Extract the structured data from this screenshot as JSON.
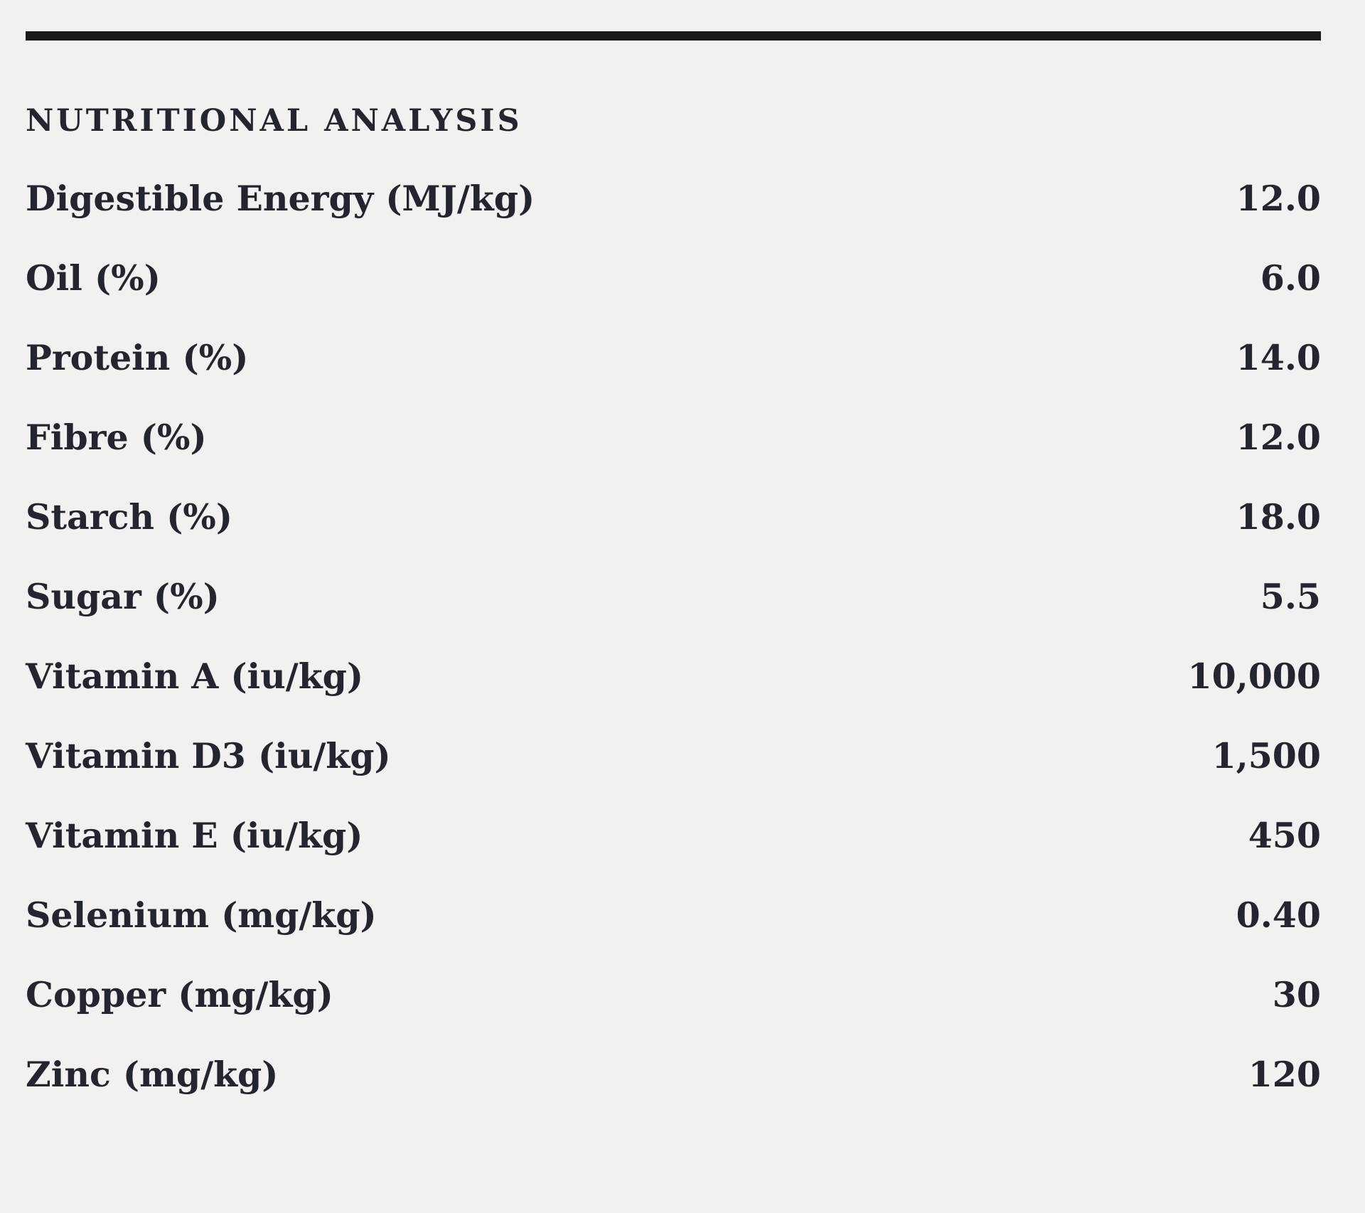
{
  "theme": {
    "bg": "#f2f1ef",
    "ink": "#232530",
    "rule": "#191919"
  },
  "section": {
    "title": "NUTRITIONAL ANALYSIS"
  },
  "table": {
    "rows": [
      {
        "label": "Digestible Energy (MJ/kg)",
        "value": "12.0"
      },
      {
        "label": "Oil (%)",
        "value": "6.0"
      },
      {
        "label": "Protein (%)",
        "value": "14.0"
      },
      {
        "label": "Fibre (%)",
        "value": "12.0"
      },
      {
        "label": "Starch (%)",
        "value": "18.0"
      },
      {
        "label": "Sugar (%)",
        "value": "5.5"
      },
      {
        "label": "Vitamin A (iu/kg)",
        "value": "10,000"
      },
      {
        "label": "Vitamin D3 (iu/kg)",
        "value": "1,500"
      },
      {
        "label": "Vitamin E (iu/kg)",
        "value": "450"
      },
      {
        "label": "Selenium (mg/kg)",
        "value": "0.40"
      },
      {
        "label": "Copper (mg/kg)",
        "value": "30"
      },
      {
        "label": "Zinc (mg/kg)",
        "value": "120"
      }
    ]
  }
}
